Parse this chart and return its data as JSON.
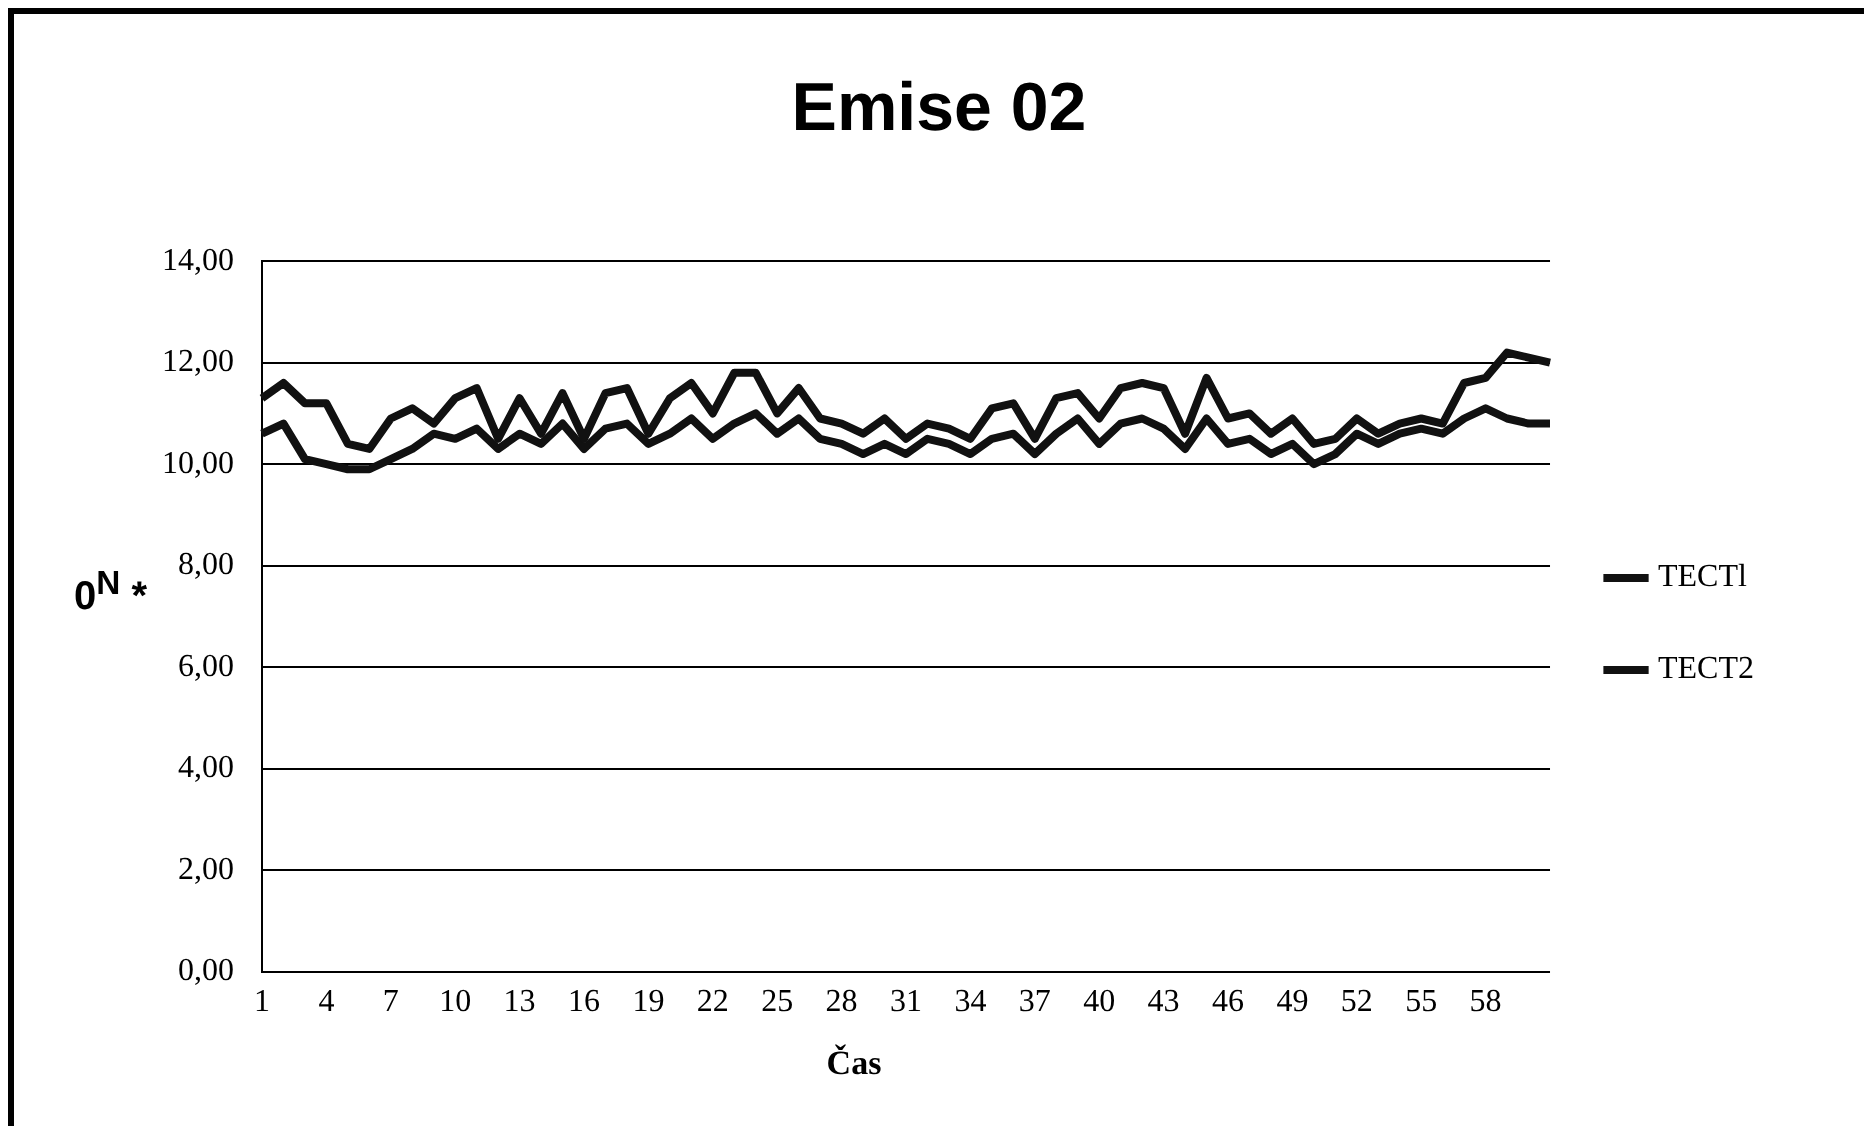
{
  "chart_data": {
    "type": "line",
    "title": "Emise 02",
    "xlabel": "Čas",
    "ylabel": "0$^{N}$ *",
    "categories": [
      "1",
      null,
      null,
      "4",
      null,
      null,
      "7",
      null,
      null,
      "10",
      null,
      null,
      "13",
      null,
      null,
      "16",
      null,
      null,
      "19",
      null,
      null,
      "22",
      null,
      null,
      "25",
      null,
      null,
      "28",
      null,
      null,
      "31",
      null,
      null,
      "34",
      null,
      null,
      "37",
      null,
      null,
      "40",
      null,
      null,
      "43",
      null,
      null,
      "46",
      null,
      null,
      "49",
      null,
      null,
      "52",
      null,
      null,
      "55",
      null,
      null,
      "58",
      null,
      null,
      null
    ],
    "series": [
      {
        "name": "TECTl",
        "color": "#111111",
        "values": [
          11.3,
          11.6,
          11.2,
          11.2,
          10.4,
          10.3,
          10.9,
          11.1,
          10.8,
          11.3,
          11.5,
          10.5,
          11.3,
          10.6,
          11.4,
          10.5,
          11.4,
          11.5,
          10.6,
          11.3,
          11.6,
          11.0,
          11.8,
          11.8,
          11.0,
          11.5,
          10.9,
          10.8,
          10.6,
          10.9,
          10.5,
          10.8,
          10.7,
          10.5,
          11.1,
          11.2,
          10.5,
          11.3,
          11.4,
          10.9,
          11.5,
          11.6,
          11.5,
          10.6,
          11.7,
          10.9,
          11.0,
          10.6,
          10.9,
          10.4,
          10.5,
          10.9,
          10.6,
          10.8,
          10.9,
          10.8,
          11.6,
          11.7,
          12.2,
          12.1,
          12.0
        ]
      },
      {
        "name": "TECT2",
        "color": "#111111",
        "values": [
          10.6,
          10.8,
          10.1,
          10.0,
          9.9,
          9.9,
          10.1,
          10.3,
          10.6,
          10.5,
          10.7,
          10.3,
          10.6,
          10.4,
          10.8,
          10.3,
          10.7,
          10.8,
          10.4,
          10.6,
          10.9,
          10.5,
          10.8,
          11.0,
          10.6,
          10.9,
          10.5,
          10.4,
          10.2,
          10.4,
          10.2,
          10.5,
          10.4,
          10.2,
          10.5,
          10.6,
          10.2,
          10.6,
          10.9,
          10.4,
          10.8,
          10.9,
          10.7,
          10.3,
          10.9,
          10.4,
          10.5,
          10.2,
          10.4,
          10.0,
          10.2,
          10.6,
          10.4,
          10.6,
          10.7,
          10.6,
          10.9,
          11.1,
          10.9,
          10.8,
          10.8
        ]
      }
    ],
    "ylim": [
      0,
      14
    ],
    "yticks": [
      {
        "value": 0,
        "label": "0,00"
      },
      {
        "value": 2,
        "label": "2,00"
      },
      {
        "value": 4,
        "label": "4,00"
      },
      {
        "value": 6,
        "label": "6,00"
      },
      {
        "value": 8,
        "label": "8,00"
      },
      {
        "value": 10,
        "label": "10,00"
      },
      {
        "value": 12,
        "label": "12,00"
      },
      {
        "value": 14,
        "label": "14,00"
      }
    ],
    "grid": "y",
    "legend": "right",
    "marker": "none",
    "line_style": "solid"
  }
}
